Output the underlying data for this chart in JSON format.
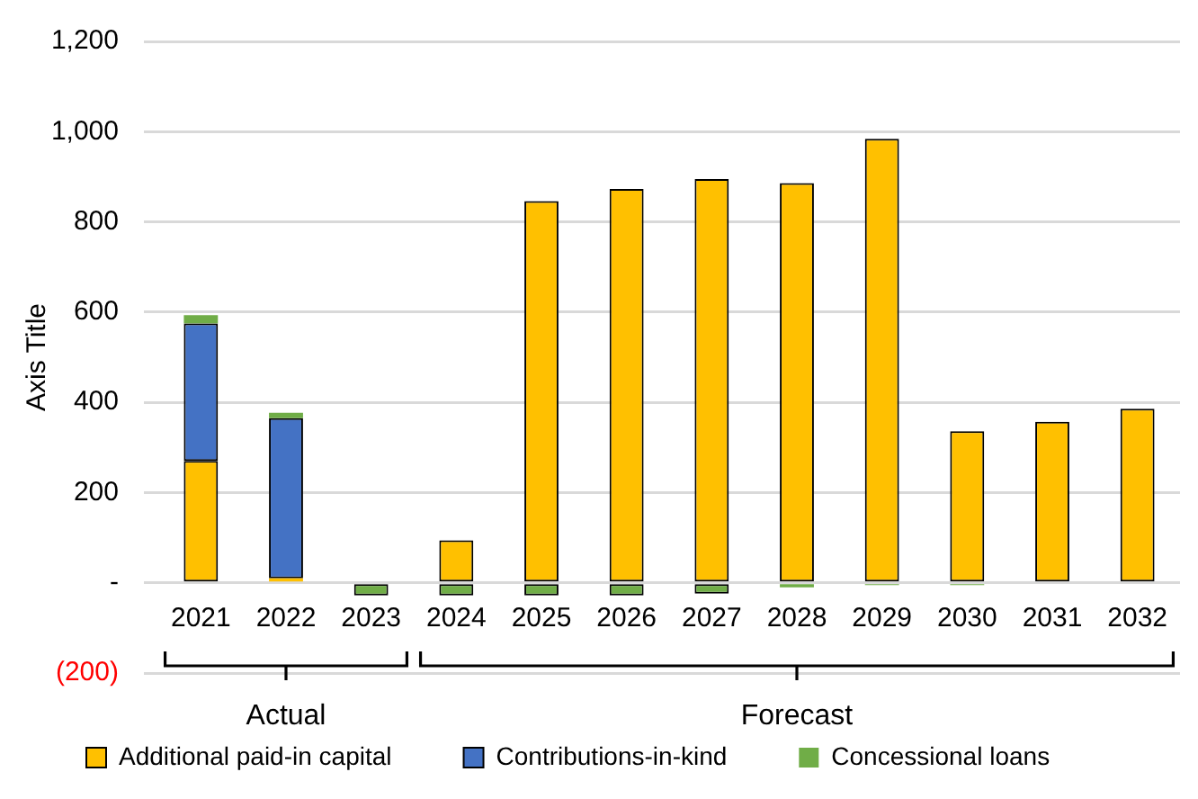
{
  "chart_data": {
    "type": "bar",
    "stacked": true,
    "ylabel": "Axis Title",
    "categories": [
      "2021",
      "2022",
      "2023",
      "2024",
      "2025",
      "2026",
      "2027",
      "2028",
      "2029",
      "2030",
      "2031",
      "2032"
    ],
    "series": [
      {
        "name": "Additional paid-in capital",
        "color": "#ffc000",
        "values": [
          270,
          10,
          0,
          94,
          846,
          873,
          895,
          886,
          984,
          336,
          357,
          386
        ]
      },
      {
        "name": "Contributions-in-kind",
        "color": "#4472c4",
        "values": [
          305,
          355,
          0,
          0,
          0,
          0,
          0,
          0,
          0,
          0,
          0,
          0
        ]
      },
      {
        "name": "Concessional loans",
        "color": "#70ad47",
        "values": [
          18,
          12,
          -28,
          -28,
          -28,
          -28,
          -24,
          -10,
          -5,
          -5,
          null,
          null
        ]
      }
    ],
    "ylim": [
      -200,
      1200
    ],
    "yticks": [
      {
        "value": -200,
        "label": "(200)"
      },
      {
        "value": 0,
        "label": "-"
      },
      200,
      400,
      600,
      800,
      {
        "value": 1000,
        "label": "1,000"
      },
      {
        "value": 1200,
        "label": "1,200"
      }
    ],
    "grid": "y",
    "legend": "bottom",
    "annotations": [
      "Actual",
      "Forecast"
    ]
  }
}
